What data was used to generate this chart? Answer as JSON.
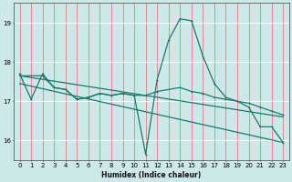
{
  "xlabel": "Humidex (Indice chaleur)",
  "ylabel": "",
  "bg_color": "#cce8e8",
  "vgrid_color": "#e88888",
  "hgrid_color": "#ffffff",
  "line_color": "#1a7a6a",
  "xlim": [
    -0.5,
    23.5
  ],
  "ylim": [
    15.5,
    19.5
  ],
  "yticks": [
    16,
    17,
    18,
    19
  ],
  "xticks": [
    0,
    1,
    2,
    3,
    4,
    5,
    6,
    7,
    8,
    9,
    10,
    11,
    12,
    13,
    14,
    15,
    16,
    17,
    18,
    19,
    20,
    21,
    22,
    23
  ],
  "series1_x": [
    0,
    1,
    2,
    3,
    4,
    5,
    6,
    7,
    8,
    9,
    10,
    11,
    12,
    13,
    14,
    15,
    16,
    17,
    18,
    19,
    20,
    21,
    22,
    23
  ],
  "series1_y": [
    17.7,
    17.05,
    17.7,
    17.35,
    17.3,
    17.05,
    17.1,
    17.2,
    17.15,
    17.2,
    17.15,
    15.65,
    17.55,
    18.55,
    19.1,
    19.05,
    18.15,
    17.45,
    17.1,
    17.0,
    16.85,
    16.35,
    16.35,
    15.95
  ],
  "series2_x": [
    0,
    2,
    3,
    4,
    5,
    6,
    7,
    8,
    9,
    10,
    11,
    12,
    14,
    15,
    16,
    17,
    18,
    20,
    21,
    22,
    23
  ],
  "series2_y": [
    17.65,
    17.65,
    17.35,
    17.3,
    17.05,
    17.1,
    17.2,
    17.15,
    17.2,
    17.15,
    17.15,
    17.25,
    17.35,
    17.25,
    17.2,
    17.1,
    17.05,
    16.95,
    16.85,
    16.75,
    16.65
  ],
  "series3_x": [
    0,
    23
  ],
  "series3_y": [
    17.65,
    16.6
  ],
  "series4_x": [
    0,
    23
  ],
  "series4_y": [
    17.45,
    15.95
  ]
}
